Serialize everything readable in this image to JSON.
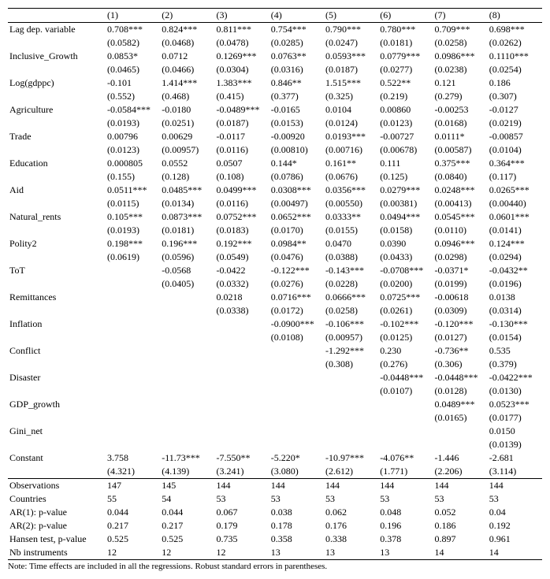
{
  "columns": [
    "(1)",
    "(2)",
    "(3)",
    "(4)",
    "(5)",
    "(6)",
    "(7)",
    "(8)"
  ],
  "vars": [
    {
      "label": "Lag dep. variable",
      "coef": [
        "0.708***",
        "0.824***",
        "0.811***",
        "0.754***",
        "0.790***",
        "0.780***",
        "0.709***",
        "0.698***"
      ],
      "se": [
        "(0.0582)",
        "(0.0468)",
        "(0.0478)",
        "(0.0285)",
        "(0.0247)",
        "(0.0181)",
        "(0.0258)",
        "(0.0262)"
      ]
    },
    {
      "label": "Inclusive_Growth",
      "coef": [
        "0.0853*",
        "0.0712",
        "0.1269***",
        "0.0763**",
        "0.0593***",
        "0.0779***",
        "0.0986***",
        "0.1110***"
      ],
      "se": [
        "(0.0465)",
        "(0.0466)",
        "(0.0304)",
        "(0.0316)",
        "(0.0187)",
        "(0.0277)",
        "(0.0238)",
        "(0.0254)"
      ]
    },
    {
      "label": "Log(gdppc)",
      "coef": [
        "-0.101",
        "1.414***",
        "1.383***",
        "0.846**",
        "1.515***",
        "0.522**",
        "0.121",
        "0.186"
      ],
      "se": [
        "(0.552)",
        "(0.468)",
        "(0.415)",
        "(0.377)",
        "(0.325)",
        "(0.219)",
        "(0.279)",
        "(0.307)"
      ]
    },
    {
      "label": "Agriculture",
      "coef": [
        "-0.0584***",
        "-0.0180",
        "-0.0489***",
        "-0.0165",
        "0.0104",
        "0.00860",
        "-0.00253",
        "-0.0127"
      ],
      "se": [
        "(0.0193)",
        "(0.0251)",
        "(0.0187)",
        "(0.0153)",
        "(0.0124)",
        "(0.0123)",
        "(0.0168)",
        "(0.0219)"
      ]
    },
    {
      "label": "Trade",
      "coef": [
        "0.00796",
        "0.00629",
        "-0.0117",
        "-0.00920",
        "0.0193***",
        "-0.00727",
        "0.0111*",
        "-0.00857"
      ],
      "se": [
        "(0.0123)",
        "(0.00957)",
        "(0.0116)",
        "(0.00810)",
        "(0.00716)",
        "(0.00678)",
        "(0.00587)",
        "(0.0104)"
      ]
    },
    {
      "label": "Education",
      "coef": [
        "0.000805",
        "0.0552",
        "0.0507",
        "0.144*",
        "0.161**",
        "0.111",
        "0.375***",
        "0.364***"
      ],
      "se": [
        "(0.155)",
        "(0.128)",
        "(0.108)",
        "(0.0786)",
        "(0.0676)",
        "(0.125)",
        "(0.0840)",
        "(0.117)"
      ]
    },
    {
      "label": "Aid",
      "coef": [
        "0.0511***",
        "0.0485***",
        "0.0499***",
        "0.0308***",
        "0.0356***",
        "0.0279***",
        "0.0248***",
        "0.0265***"
      ],
      "se": [
        "(0.0115)",
        "(0.0134)",
        "(0.0116)",
        "(0.00497)",
        "(0.00550)",
        "(0.00381)",
        "(0.00413)",
        "(0.00440)"
      ]
    },
    {
      "label": "Natural_rents",
      "coef": [
        "0.105***",
        "0.0873***",
        "0.0752***",
        "0.0652***",
        "0.0333**",
        "0.0494***",
        "0.0545***",
        "0.0601***"
      ],
      "se": [
        "(0.0193)",
        "(0.0181)",
        "(0.0183)",
        "(0.0170)",
        "(0.0155)",
        "(0.0158)",
        "(0.0110)",
        "(0.0141)"
      ]
    },
    {
      "label": "Polity2",
      "coef": [
        "0.198***",
        "0.196***",
        "0.192***",
        "0.0984**",
        "0.0470",
        "0.0390",
        "0.0946***",
        "0.124***"
      ],
      "se": [
        "(0.0619)",
        "(0.0596)",
        "(0.0549)",
        "(0.0476)",
        "(0.0388)",
        "(0.0433)",
        "(0.0298)",
        "(0.0294)"
      ]
    },
    {
      "label": "ToT",
      "coef": [
        "",
        "-0.0568",
        "-0.0422",
        "-0.122***",
        "-0.143***",
        "-0.0708***",
        "-0.0371*",
        "-0.0432**"
      ],
      "se": [
        "",
        "(0.0405)",
        "(0.0332)",
        "(0.0276)",
        "(0.0228)",
        "(0.0200)",
        "(0.0199)",
        "(0.0196)"
      ]
    },
    {
      "label": "Remittances",
      "coef": [
        "",
        "",
        "0.0218",
        "0.0716***",
        "0.0666***",
        "0.0725***",
        "-0.00618",
        "0.0138"
      ],
      "se": [
        "",
        "",
        "(0.0338)",
        "(0.0172)",
        "(0.0258)",
        "(0.0261)",
        "(0.0309)",
        "(0.0314)"
      ]
    },
    {
      "label": "Inflation",
      "coef": [
        "",
        "",
        "",
        "-0.0900***",
        "-0.106***",
        "-0.102***",
        "-0.120***",
        "-0.130***"
      ],
      "se": [
        "",
        "",
        "",
        "(0.0108)",
        "(0.00957)",
        "(0.0125)",
        "(0.0127)",
        "(0.0154)"
      ]
    },
    {
      "label": "Conflict",
      "coef": [
        "",
        "",
        "",
        "",
        "-1.292***",
        "0.230",
        "-0.736**",
        "0.535"
      ],
      "se": [
        "",
        "",
        "",
        "",
        "(0.308)",
        "(0.276)",
        "(0.306)",
        "(0.379)"
      ]
    },
    {
      "label": "Disaster",
      "coef": [
        "",
        "",
        "",
        "",
        "",
        "-0.0448***",
        "-0.0448***",
        "-0.0422***"
      ],
      "se": [
        "",
        "",
        "",
        "",
        "",
        "(0.0107)",
        "(0.0128)",
        "(0.0130)"
      ]
    },
    {
      "label": "GDP_growth",
      "coef": [
        "",
        "",
        "",
        "",
        "",
        "",
        "0.0489***",
        "0.0523***"
      ],
      "se": [
        "",
        "",
        "",
        "",
        "",
        "",
        "(0.0165)",
        "(0.0177)"
      ]
    },
    {
      "label": "Gini_net",
      "coef": [
        "",
        "",
        "",
        "",
        "",
        "",
        "",
        "0.0150"
      ],
      "se": [
        "",
        "",
        "",
        "",
        "",
        "",
        "",
        "(0.0139)"
      ]
    },
    {
      "label": "Constant",
      "coef": [
        "3.758",
        "-11.73***",
        "-7.550**",
        "-5.220*",
        "-10.97***",
        "-4.076**",
        "-1.446",
        "-2.681"
      ],
      "se": [
        "(4.321)",
        "(4.139)",
        "(3.241)",
        "(3.080)",
        "(2.612)",
        "(1.771)",
        "(2.206)",
        "(3.114)"
      ]
    }
  ],
  "stats": [
    {
      "label": "Observations",
      "vals": [
        "147",
        "145",
        "144",
        "144",
        "144",
        "144",
        "144",
        "144"
      ]
    },
    {
      "label": "Countries",
      "vals": [
        "55",
        "54",
        "53",
        "53",
        "53",
        "53",
        "53",
        "53"
      ]
    },
    {
      "label": "AR(1): p-value",
      "vals": [
        "0.044",
        "0.044",
        "0.067",
        "0.038",
        "0.062",
        "0.048",
        "0.052",
        "0.04"
      ]
    },
    {
      "label": "AR(2): p-value",
      "vals": [
        "0.217",
        "0.217",
        "0.179",
        "0.178",
        "0.176",
        "0.196",
        "0.186",
        "0.192"
      ]
    },
    {
      "label": "Hansen test, p-value",
      "vals": [
        "0.525",
        "0.525",
        "0.735",
        "0.358",
        "0.338",
        "0.378",
        "0.897",
        "0.961"
      ]
    },
    {
      "label": "Nb instruments",
      "vals": [
        "12",
        "12",
        "12",
        "13",
        "13",
        "13",
        "14",
        "14"
      ]
    }
  ],
  "note": "Note: Time effects are included in all the regressions. Robust standard errors in parentheses."
}
